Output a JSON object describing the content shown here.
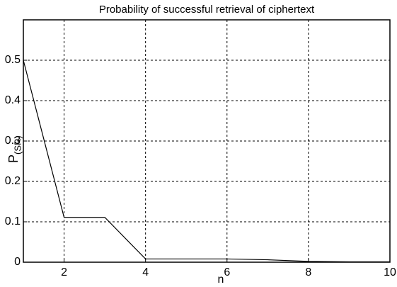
{
  "chart_data": {
    "type": "line",
    "title": "Probability of successful retrieval of ciphertext",
    "xlabel": "n",
    "ylabel": "P",
    "ylabel_subscript": "(SR)",
    "x": [
      1,
      2,
      3,
      4,
      5,
      6,
      7,
      8,
      9,
      10
    ],
    "series": [
      {
        "color": "#000000",
        "values": [
          0.5,
          0.111,
          0.111,
          0.008,
          0.008,
          0.008,
          0.006,
          0.002,
          0.001,
          0.001
        ]
      }
    ],
    "xlim": [
      1,
      10
    ],
    "xticks": [
      2,
      4,
      6,
      8,
      10
    ],
    "ylim": [
      0,
      0.6
    ],
    "yticks": [
      0,
      0.1,
      0.2,
      0.3,
      0.4,
      0.5
    ],
    "grid": true
  }
}
